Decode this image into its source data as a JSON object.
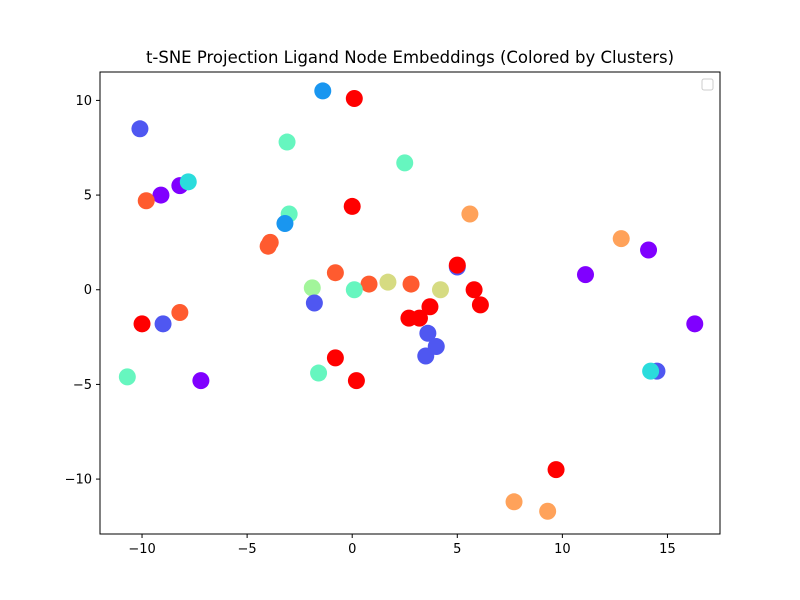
{
  "chart_data": {
    "type": "scatter",
    "title": "t-SNE Projection Ligand Node Embeddings (Colored by Clusters)",
    "xlabel": "",
    "ylabel": "",
    "xlim": [
      -12,
      17.5
    ],
    "ylim": [
      -12.9,
      11.5
    ],
    "xticks": [
      -10,
      -5,
      0,
      5,
      10,
      15
    ],
    "yticks": [
      -10,
      -5,
      0,
      5,
      10
    ],
    "xtick_labels": [
      "−10",
      "−5",
      "0",
      "5",
      "10",
      "15"
    ],
    "ytick_labels": [
      "−10",
      "−5",
      "0",
      "5",
      "10"
    ],
    "grid": false,
    "legend": "top-right (empty)",
    "points": [
      {
        "x": -1.4,
        "y": 10.5,
        "color": "#1996f0"
      },
      {
        "x": 0.1,
        "y": 10.1,
        "color": "#ff0000"
      },
      {
        "x": -10.1,
        "y": 8.5,
        "color": "#4f57f1"
      },
      {
        "x": -3.1,
        "y": 7.8,
        "color": "#66f6bf"
      },
      {
        "x": 2.5,
        "y": 6.7,
        "color": "#66f6bf"
      },
      {
        "x": -8.2,
        "y": 5.5,
        "color": "#8000ff"
      },
      {
        "x": -7.8,
        "y": 5.7,
        "color": "#2adcdc"
      },
      {
        "x": -9.1,
        "y": 5.0,
        "color": "#8000ff"
      },
      {
        "x": -9.8,
        "y": 4.7,
        "color": "#ff5b2f"
      },
      {
        "x": 0.0,
        "y": 4.4,
        "color": "#ff0000"
      },
      {
        "x": 5.6,
        "y": 4.0,
        "color": "#ffa25a"
      },
      {
        "x": -3.0,
        "y": 4.0,
        "color": "#66f6bf"
      },
      {
        "x": -3.2,
        "y": 3.5,
        "color": "#1996f0"
      },
      {
        "x": -3.9,
        "y": 2.5,
        "color": "#ff5b2f"
      },
      {
        "x": -4.0,
        "y": 2.3,
        "color": "#ff5b2f"
      },
      {
        "x": 12.8,
        "y": 2.7,
        "color": "#ffa25a"
      },
      {
        "x": 14.1,
        "y": 2.1,
        "color": "#8000ff"
      },
      {
        "x": 5.0,
        "y": 1.2,
        "color": "#4f57f1"
      },
      {
        "x": 11.1,
        "y": 0.8,
        "color": "#8000ff"
      },
      {
        "x": -0.8,
        "y": 0.9,
        "color": "#ff5b2f"
      },
      {
        "x": 1.7,
        "y": 0.4,
        "color": "#d6db82"
      },
      {
        "x": 0.8,
        "y": 0.3,
        "color": "#ff5b2f"
      },
      {
        "x": 2.8,
        "y": 0.3,
        "color": "#ff5b2f"
      },
      {
        "x": -1.9,
        "y": 0.1,
        "color": "#a2f59a"
      },
      {
        "x": 0.1,
        "y": 0.0,
        "color": "#66f6bf"
      },
      {
        "x": 4.2,
        "y": 0.0,
        "color": "#d6db82"
      },
      {
        "x": 5.8,
        "y": 0.0,
        "color": "#ff0000"
      },
      {
        "x": -1.8,
        "y": -0.7,
        "color": "#4f57f1"
      },
      {
        "x": 6.1,
        "y": -0.8,
        "color": "#ff0000"
      },
      {
        "x": 3.7,
        "y": -0.9,
        "color": "#ff0000"
      },
      {
        "x": 2.7,
        "y": -1.5,
        "color": "#ff0000"
      },
      {
        "x": 3.2,
        "y": -1.5,
        "color": "#ff0000"
      },
      {
        "x": -8.2,
        "y": -1.2,
        "color": "#ff5b2f"
      },
      {
        "x": -10.0,
        "y": -1.8,
        "color": "#ff0000"
      },
      {
        "x": -9.0,
        "y": -1.8,
        "color": "#4f57f1"
      },
      {
        "x": 3.6,
        "y": -2.3,
        "color": "#4f57f1"
      },
      {
        "x": 4.0,
        "y": -3.0,
        "color": "#4f57f1"
      },
      {
        "x": 3.5,
        "y": -3.5,
        "color": "#4f57f1"
      },
      {
        "x": -0.8,
        "y": -3.6,
        "color": "#ff0000"
      },
      {
        "x": 16.3,
        "y": -1.8,
        "color": "#8000ff"
      },
      {
        "x": 14.5,
        "y": -4.3,
        "color": "#4f57f1"
      },
      {
        "x": 14.2,
        "y": -4.3,
        "color": "#2adcdc"
      },
      {
        "x": -10.7,
        "y": -4.6,
        "color": "#66f6bf"
      },
      {
        "x": -1.6,
        "y": -4.4,
        "color": "#66f6bf"
      },
      {
        "x": -7.2,
        "y": -4.8,
        "color": "#8000ff"
      },
      {
        "x": 0.2,
        "y": -4.8,
        "color": "#ff0000"
      },
      {
        "x": 9.7,
        "y": -9.5,
        "color": "#ff0000"
      },
      {
        "x": 7.7,
        "y": -11.2,
        "color": "#ffa25a"
      },
      {
        "x": 9.3,
        "y": -11.7,
        "color": "#ffa25a"
      },
      {
        "x": 5.0,
        "y": 1.3,
        "color": "#ff0000"
      }
    ]
  }
}
